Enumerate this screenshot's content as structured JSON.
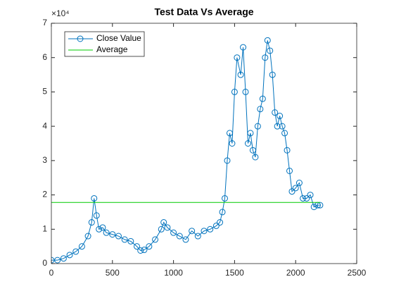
{
  "chart_data": {
    "type": "line",
    "title": "Test Data Vs Average",
    "y_exponent_label": "×10⁴",
    "xlim": [
      0,
      2500
    ],
    "xticks": [
      0,
      500,
      1000,
      1500,
      2000,
      2500
    ],
    "ylim": [
      0,
      7
    ],
    "yticks": [
      0,
      1,
      2,
      3,
      4,
      5,
      6,
      7
    ],
    "legend": "upper left",
    "series": [
      {
        "name": "Close Value",
        "color": "#0072bd",
        "marker": "circle",
        "x": [
          0,
          50,
          100,
          150,
          200,
          250,
          300,
          330,
          350,
          370,
          390,
          420,
          450,
          500,
          550,
          600,
          650,
          700,
          730,
          760,
          800,
          850,
          900,
          920,
          950,
          1000,
          1050,
          1100,
          1150,
          1200,
          1250,
          1300,
          1350,
          1380,
          1400,
          1420,
          1440,
          1460,
          1480,
          1500,
          1520,
          1550,
          1570,
          1590,
          1610,
          1630,
          1650,
          1670,
          1690,
          1710,
          1730,
          1750,
          1770,
          1790,
          1810,
          1830,
          1850,
          1870,
          1890,
          1910,
          1930,
          1950,
          1970,
          2000,
          2030,
          2060,
          2090,
          2120,
          2150,
          2180,
          2200
        ],
        "values": [
          0.1,
          0.1,
          0.15,
          0.25,
          0.35,
          0.5,
          0.8,
          1.2,
          1.9,
          1.4,
          1.0,
          1.05,
          0.9,
          0.85,
          0.8,
          0.7,
          0.65,
          0.5,
          0.38,
          0.4,
          0.5,
          0.7,
          1.0,
          1.2,
          1.05,
          0.9,
          0.8,
          0.7,
          0.95,
          0.8,
          0.95,
          1.0,
          1.1,
          1.2,
          1.5,
          1.9,
          3.0,
          3.8,
          3.5,
          5.0,
          6.0,
          5.5,
          6.3,
          5.0,
          3.5,
          3.8,
          3.3,
          3.1,
          4.0,
          4.5,
          4.8,
          6.0,
          6.5,
          6.2,
          5.5,
          4.4,
          4.0,
          4.3,
          4.0,
          3.8,
          3.3,
          2.7,
          2.1,
          2.2,
          2.35,
          1.9,
          1.9,
          2.0,
          1.65,
          1.7,
          1.7
        ]
      },
      {
        "name": "Average",
        "color": "#00cc00",
        "x": [
          0,
          2200
        ],
        "values": [
          1.78,
          1.78
        ]
      }
    ]
  }
}
